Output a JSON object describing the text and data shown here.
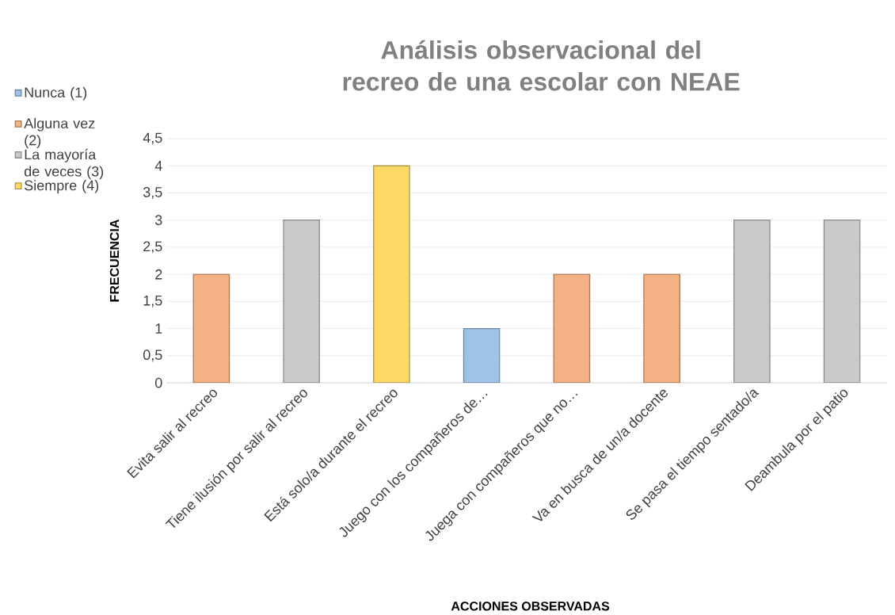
{
  "chart_data": {
    "type": "bar",
    "title": "Análisis observacional del recreo de una escolar con NEAE",
    "xlabel": "ACCIONES OBSERVADAS",
    "ylabel": "FRECUENCIA",
    "categories": [
      "Evita salir al recreo",
      "Tiene ilusión por salir al recreo",
      "Está solo/a durante el recreo",
      "Juego con los compañeros de…",
      "Juega con compañeros que no…",
      "Va en busca de un/a docente",
      "Se pasa el tiempo sentado/a",
      "Deambula por el patio"
    ],
    "series": [
      {
        "name": "Nunca (1)",
        "color": "#9dc3e6",
        "values": [
          null,
          null,
          null,
          1,
          null,
          null,
          null,
          null
        ]
      },
      {
        "name": "Alguna vez (2)",
        "color": "#f4b183",
        "values": [
          2,
          null,
          null,
          null,
          2,
          2,
          null,
          null
        ]
      },
      {
        "name": "La mayoría de veces (3)",
        "color": "#c9c9c9",
        "values": [
          null,
          3,
          null,
          null,
          null,
          null,
          3,
          3
        ]
      },
      {
        "name": "Siempre (4)",
        "color": "#ffd966",
        "values": [
          null,
          null,
          4,
          null,
          null,
          null,
          null,
          null
        ]
      }
    ],
    "ylim": [
      0,
      4.5
    ],
    "yticks": [
      0,
      {
        "value": 0.5,
        "label": "0,5"
      },
      1,
      {
        "value": 1.5,
        "label": "1,5"
      },
      2,
      {
        "value": 2.5,
        "label": "2,5"
      },
      3,
      {
        "value": 3.5,
        "label": "3,5"
      },
      4,
      {
        "value": 4.5,
        "label": "4,5"
      }
    ],
    "grid": "y",
    "legend": "left"
  }
}
